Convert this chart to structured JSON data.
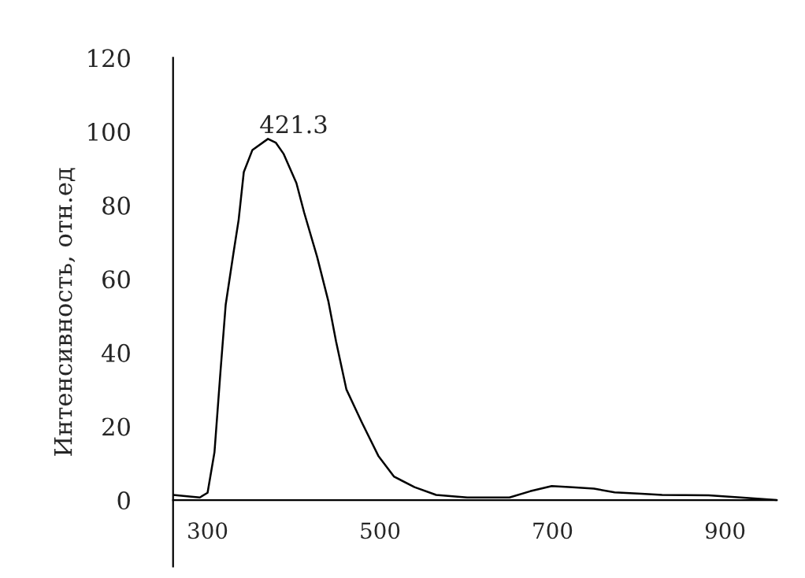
{
  "chart_data": {
    "type": "line",
    "ylabel": "Интенсивность, отн.ед",
    "annotations": [
      "421.3"
    ],
    "x": [
      260,
      279,
      291,
      300,
      308,
      315,
      321,
      330,
      336,
      342,
      352,
      370,
      379,
      388,
      403,
      412,
      427,
      440,
      449,
      461,
      479,
      498,
      516,
      540,
      565,
      601,
      650,
      674,
      699,
      723,
      748,
      772,
      803,
      827,
      881,
      918,
      960
    ],
    "series": [
      {
        "color": "#000000",
        "values": [
          1.4,
          1,
          0.7,
          2,
          13,
          35,
          53,
          67,
          76,
          89,
          95,
          98,
          97,
          94,
          86,
          78,
          66,
          54,
          43,
          30,
          21,
          12,
          6.4,
          3.5,
          1.4,
          0.7,
          0.7,
          2.4,
          3.8,
          3.5,
          3.1,
          2.1,
          1.7,
          1.4,
          1.3,
          0.7,
          0
        ]
      }
    ],
    "xlim": [
      260,
      960
    ],
    "xticks": [
      300,
      500,
      700,
      900
    ],
    "ylim": [
      -18,
      120
    ],
    "yticks": [
      0,
      20,
      40,
      60,
      80,
      100,
      120
    ],
    "grid": false,
    "legend": false,
    "marker": "none",
    "line_style": "solid"
  }
}
